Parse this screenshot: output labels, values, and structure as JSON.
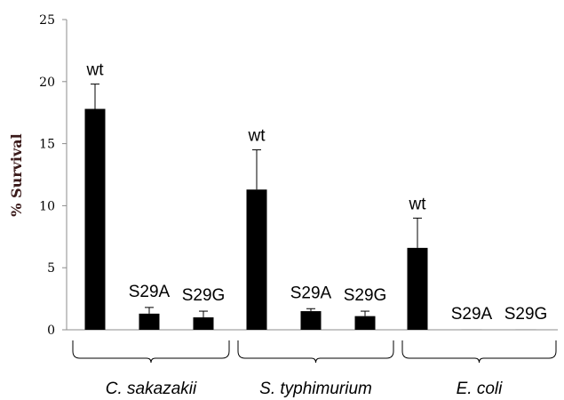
{
  "chart_data": {
    "type": "bar",
    "title": "",
    "xlabel": "",
    "ylabel": "% Survival",
    "ylim": [
      0,
      25
    ],
    "yticks": [
      "0",
      "5",
      "10",
      "15",
      "20",
      "25"
    ],
    "grid": false,
    "groups": [
      {
        "name": "C. sakazakii",
        "bars": [
          {
            "label": "wt",
            "value": 17.8,
            "error": 2.0
          },
          {
            "label": "S29A",
            "value": 1.3,
            "error": 0.5
          },
          {
            "label": "S29G",
            "value": 1.0,
            "error": 0.5
          }
        ]
      },
      {
        "name": "S. typhimurium",
        "bars": [
          {
            "label": "wt",
            "value": 11.3,
            "error": 3.2
          },
          {
            "label": "S29A",
            "value": 1.5,
            "error": 0.2
          },
          {
            "label": "S29G",
            "value": 1.1,
            "error": 0.4
          }
        ]
      },
      {
        "name": "E. coli",
        "bars": [
          {
            "label": "wt",
            "value": 6.6,
            "error": 2.4
          },
          {
            "label": "S29A",
            "value": 0.0,
            "error": 0.0
          },
          {
            "label": "S29G",
            "value": 0.0,
            "error": 0.0
          }
        ]
      }
    ],
    "colors": {
      "bar": "#000000",
      "axis": "#8c8c8c"
    }
  }
}
